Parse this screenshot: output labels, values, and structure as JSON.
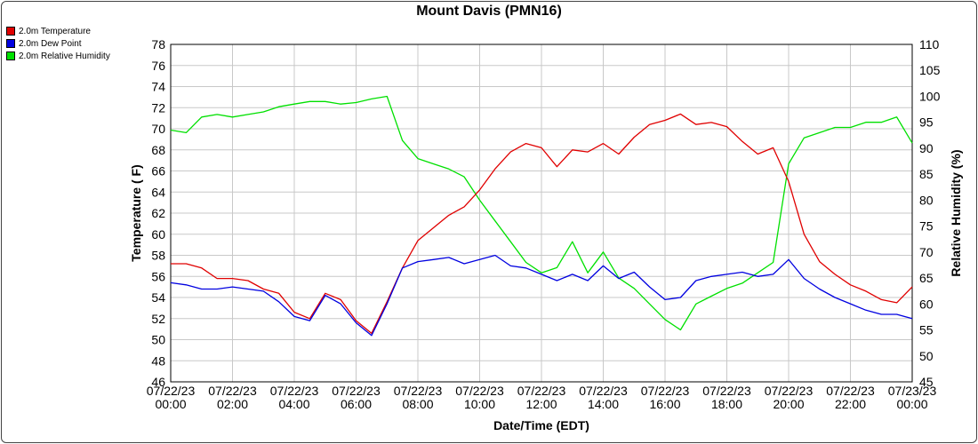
{
  "chart_data": {
    "type": "line",
    "title": "Mount Davis (PMN16)",
    "xlabel": "Date/Time (EDT)",
    "ylabel": "Temperature ( F)",
    "y2label": "Relative Humidity (%)",
    "xlim": [
      0,
      24
    ],
    "ylim": [
      46,
      78
    ],
    "y2lim": [
      45,
      110
    ],
    "grid": true,
    "legend_placement": "top-left",
    "x_tick_labels": [
      [
        "07/22/23",
        "00:00"
      ],
      [
        "07/22/23",
        "02:00"
      ],
      [
        "07/22/23",
        "04:00"
      ],
      [
        "07/22/23",
        "06:00"
      ],
      [
        "07/22/23",
        "08:00"
      ],
      [
        "07/22/23",
        "10:00"
      ],
      [
        "07/22/23",
        "12:00"
      ],
      [
        "07/22/23",
        "14:00"
      ],
      [
        "07/22/23",
        "16:00"
      ],
      [
        "07/22/23",
        "18:00"
      ],
      [
        "07/22/23",
        "20:00"
      ],
      [
        "07/22/23",
        "22:00"
      ],
      [
        "07/23/23",
        "00:00"
      ]
    ],
    "y_ticks": [
      46,
      48,
      50,
      52,
      54,
      56,
      58,
      60,
      62,
      64,
      66,
      68,
      70,
      72,
      74,
      76,
      78
    ],
    "y2_ticks": [
      45,
      50,
      55,
      60,
      65,
      70,
      75,
      80,
      85,
      90,
      95,
      100,
      105,
      110
    ],
    "x": [
      0,
      0.5,
      1,
      1.5,
      2,
      2.5,
      3,
      3.5,
      4,
      4.5,
      5,
      5.5,
      6,
      6.5,
      7,
      7.5,
      8,
      8.5,
      9,
      9.5,
      10,
      10.5,
      11,
      11.5,
      12,
      12.5,
      13,
      13.5,
      14,
      14.5,
      15,
      15.5,
      16,
      16.5,
      17,
      17.5,
      18,
      18.5,
      19,
      19.5,
      20,
      20.5,
      21,
      21.5,
      22,
      22.5,
      23,
      23.5,
      24
    ],
    "series": [
      {
        "name": "2.0m Temperature",
        "color": "#e00000",
        "axis": "left",
        "values": [
          57.2,
          57.2,
          56.8,
          55.8,
          55.8,
          55.6,
          54.8,
          54.4,
          52.6,
          52.0,
          54.4,
          53.8,
          51.8,
          50.6,
          53.6,
          56.8,
          59.4,
          60.6,
          61.8,
          62.6,
          64.2,
          66.2,
          67.8,
          68.6,
          68.2,
          66.4,
          68.0,
          67.8,
          68.6,
          67.6,
          69.2,
          70.4,
          70.8,
          71.4,
          70.4,
          70.6,
          70.2,
          68.8,
          67.6,
          68.2,
          65.0,
          60.0,
          57.4,
          56.2,
          55.2,
          54.6,
          53.8,
          53.5,
          55.0
        ]
      },
      {
        "name": "2.0m Dew Point",
        "color": "#0000e0",
        "axis": "left",
        "values": [
          55.4,
          55.2,
          54.8,
          54.8,
          55.0,
          54.8,
          54.6,
          53.6,
          52.2,
          51.8,
          54.2,
          53.4,
          51.6,
          50.4,
          53.4,
          56.8,
          57.4,
          57.6,
          57.8,
          57.2,
          57.6,
          58.0,
          57.0,
          56.8,
          56.2,
          55.6,
          56.2,
          55.6,
          57.0,
          55.8,
          56.4,
          55.0,
          53.8,
          54.0,
          55.6,
          56.0,
          56.2,
          56.4,
          56.0,
          56.2,
          57.6,
          55.8,
          54.8,
          54.0,
          53.4,
          52.8,
          52.4,
          52.4,
          52.0
        ]
      },
      {
        "name": "2.0m Relative Humidity",
        "color": "#00e000",
        "axis": "right",
        "values": [
          93.5,
          93.0,
          96.0,
          96.5,
          96.0,
          96.5,
          97.0,
          98.0,
          98.5,
          99.0,
          99.0,
          98.5,
          98.8,
          99.5,
          100.0,
          91.5,
          88.0,
          87.0,
          86.0,
          84.5,
          80.0,
          76.0,
          72.0,
          68.0,
          66.0,
          67.0,
          72.0,
          66.0,
          70.0,
          65.0,
          63.0,
          60.0,
          57.0,
          55.0,
          60.0,
          61.5,
          63.0,
          64.0,
          66.0,
          68.0,
          87.0,
          92.0,
          93.0,
          94.0,
          94.0,
          95.0,
          95.0,
          96.0,
          91.0
        ]
      }
    ]
  }
}
